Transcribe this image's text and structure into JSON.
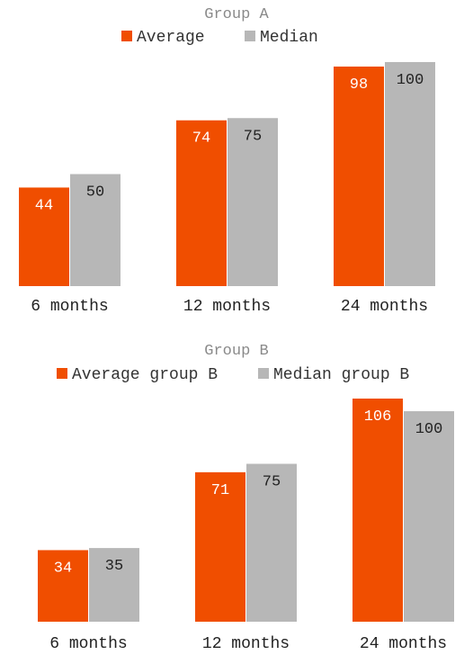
{
  "colors": {
    "average": "#f04e00",
    "median": "#b7b7b7"
  },
  "chart_data": [
    {
      "type": "bar",
      "title": "Group A",
      "categories": [
        "6 months",
        "12 months",
        "24 months"
      ],
      "series": [
        {
          "name": "Average",
          "values": [
            44,
            74,
            98
          ]
        },
        {
          "name": "Median",
          "values": [
            50,
            75,
            100
          ]
        }
      ],
      "ylim": [
        0,
        100
      ],
      "grid": false,
      "legend": "top-center"
    },
    {
      "type": "bar",
      "title": "Group B",
      "categories": [
        "6 months",
        "12 months",
        "24 months"
      ],
      "series": [
        {
          "name": "Average group B",
          "values": [
            34,
            71,
            106
          ]
        },
        {
          "name": "Median group B",
          "values": [
            35,
            75,
            100
          ]
        }
      ],
      "ylim": [
        0,
        106
      ],
      "grid": false,
      "legend": "top-center"
    }
  ]
}
